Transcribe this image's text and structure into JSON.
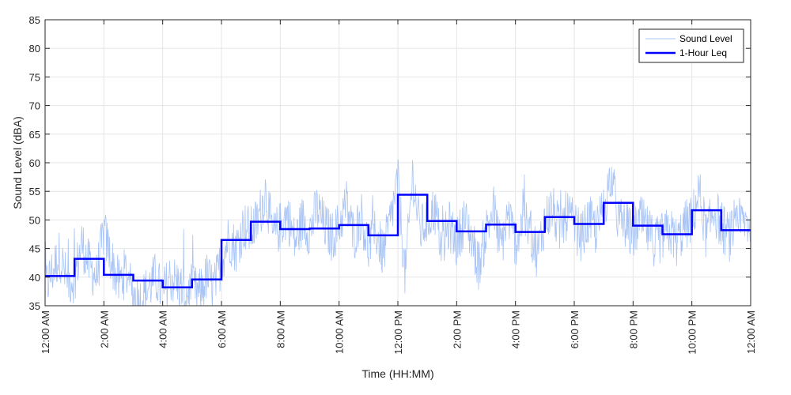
{
  "chart_data": {
    "type": "line",
    "xlabel": "Time (HH:MM)",
    "ylabel": "Sound Level (dBA)",
    "ylim": [
      35,
      85
    ],
    "yticks": [
      35,
      40,
      45,
      50,
      55,
      60,
      65,
      70,
      75,
      80,
      85
    ],
    "xlim_hours": [
      0,
      24
    ],
    "xtick_hours": [
      0,
      2,
      4,
      6,
      8,
      10,
      12,
      14,
      16,
      18,
      20,
      22,
      24
    ],
    "xtick_labels": [
      "12:00 AM",
      "2:00 AM",
      "4:00 AM",
      "6:00 AM",
      "8:00 AM",
      "10:00 AM",
      "12:00 PM",
      "2:00 PM",
      "4:00 PM",
      "6:00 PM",
      "8:00 PM",
      "10:00 PM",
      "12:00 AM"
    ],
    "grid": true,
    "legend_position": "top-right",
    "colors": {
      "sound_level": "#a9c4f5",
      "leq": "#0000ff",
      "grid": "#e6e6e6",
      "axis": "#262626"
    },
    "series": [
      {
        "name": "Sound Level",
        "style": "thin-noisy-line",
        "x_hours": [
          0,
          0.25,
          0.5,
          0.75,
          1,
          1.25,
          1.5,
          1.75,
          2,
          2.25,
          2.5,
          2.75,
          3,
          3.25,
          3.5,
          3.75,
          4,
          4.25,
          4.5,
          4.75,
          5,
          5.25,
          5.5,
          5.75,
          6,
          6.25,
          6.5,
          6.75,
          7,
          7.25,
          7.5,
          7.75,
          8,
          8.25,
          8.5,
          8.75,
          9,
          9.25,
          9.5,
          9.75,
          10,
          10.25,
          10.5,
          10.75,
          11,
          11.25,
          11.5,
          11.75,
          12,
          12.25,
          12.5,
          12.75,
          13,
          13.25,
          13.5,
          13.75,
          14,
          14.25,
          14.5,
          14.75,
          15,
          15.25,
          15.5,
          15.75,
          16,
          16.25,
          16.5,
          16.75,
          17,
          17.25,
          17.5,
          17.75,
          18,
          18.25,
          18.5,
          18.75,
          19,
          19.25,
          19.5,
          19.75,
          20,
          20.25,
          20.5,
          20.75,
          21,
          21.25,
          21.5,
          21.75,
          22,
          22.25,
          22.5,
          22.75,
          23,
          23.25,
          23.5,
          23.75,
          24
        ],
        "values": [
          38,
          41,
          44,
          39,
          40,
          46,
          42,
          40,
          48,
          43,
          39,
          41,
          37,
          36,
          38,
          40,
          37,
          40,
          39,
          37,
          38,
          37,
          40,
          38,
          43,
          47,
          45,
          49,
          48,
          50,
          55,
          47,
          49,
          51,
          46,
          50,
          48,
          52,
          49,
          47,
          49,
          53,
          47,
          51,
          45,
          48,
          44,
          50,
          57,
          40,
          58,
          48,
          50,
          52,
          45,
          49,
          46,
          50,
          47,
          42,
          48,
          52,
          45,
          51,
          46,
          50,
          48,
          44,
          50,
          52,
          48,
          51,
          49,
          47,
          50,
          48,
          52,
          58,
          50,
          49,
          47,
          50,
          48,
          46,
          47,
          48,
          46,
          49,
          50,
          55,
          47,
          52,
          49,
          47,
          48,
          50,
          49
        ]
      },
      {
        "name": "1-Hour Leq",
        "style": "thick-step-line",
        "hourly_values": [
          40.2,
          43.2,
          40.4,
          39.4,
          38.2,
          39.6,
          46.5,
          49.7,
          48.4,
          48.5,
          49.1,
          47.3,
          54.4,
          49.8,
          48.0,
          49.2,
          47.9,
          50.5,
          49.3,
          53.0,
          49.0,
          47.5,
          51.7,
          48.2
        ]
      }
    ]
  }
}
